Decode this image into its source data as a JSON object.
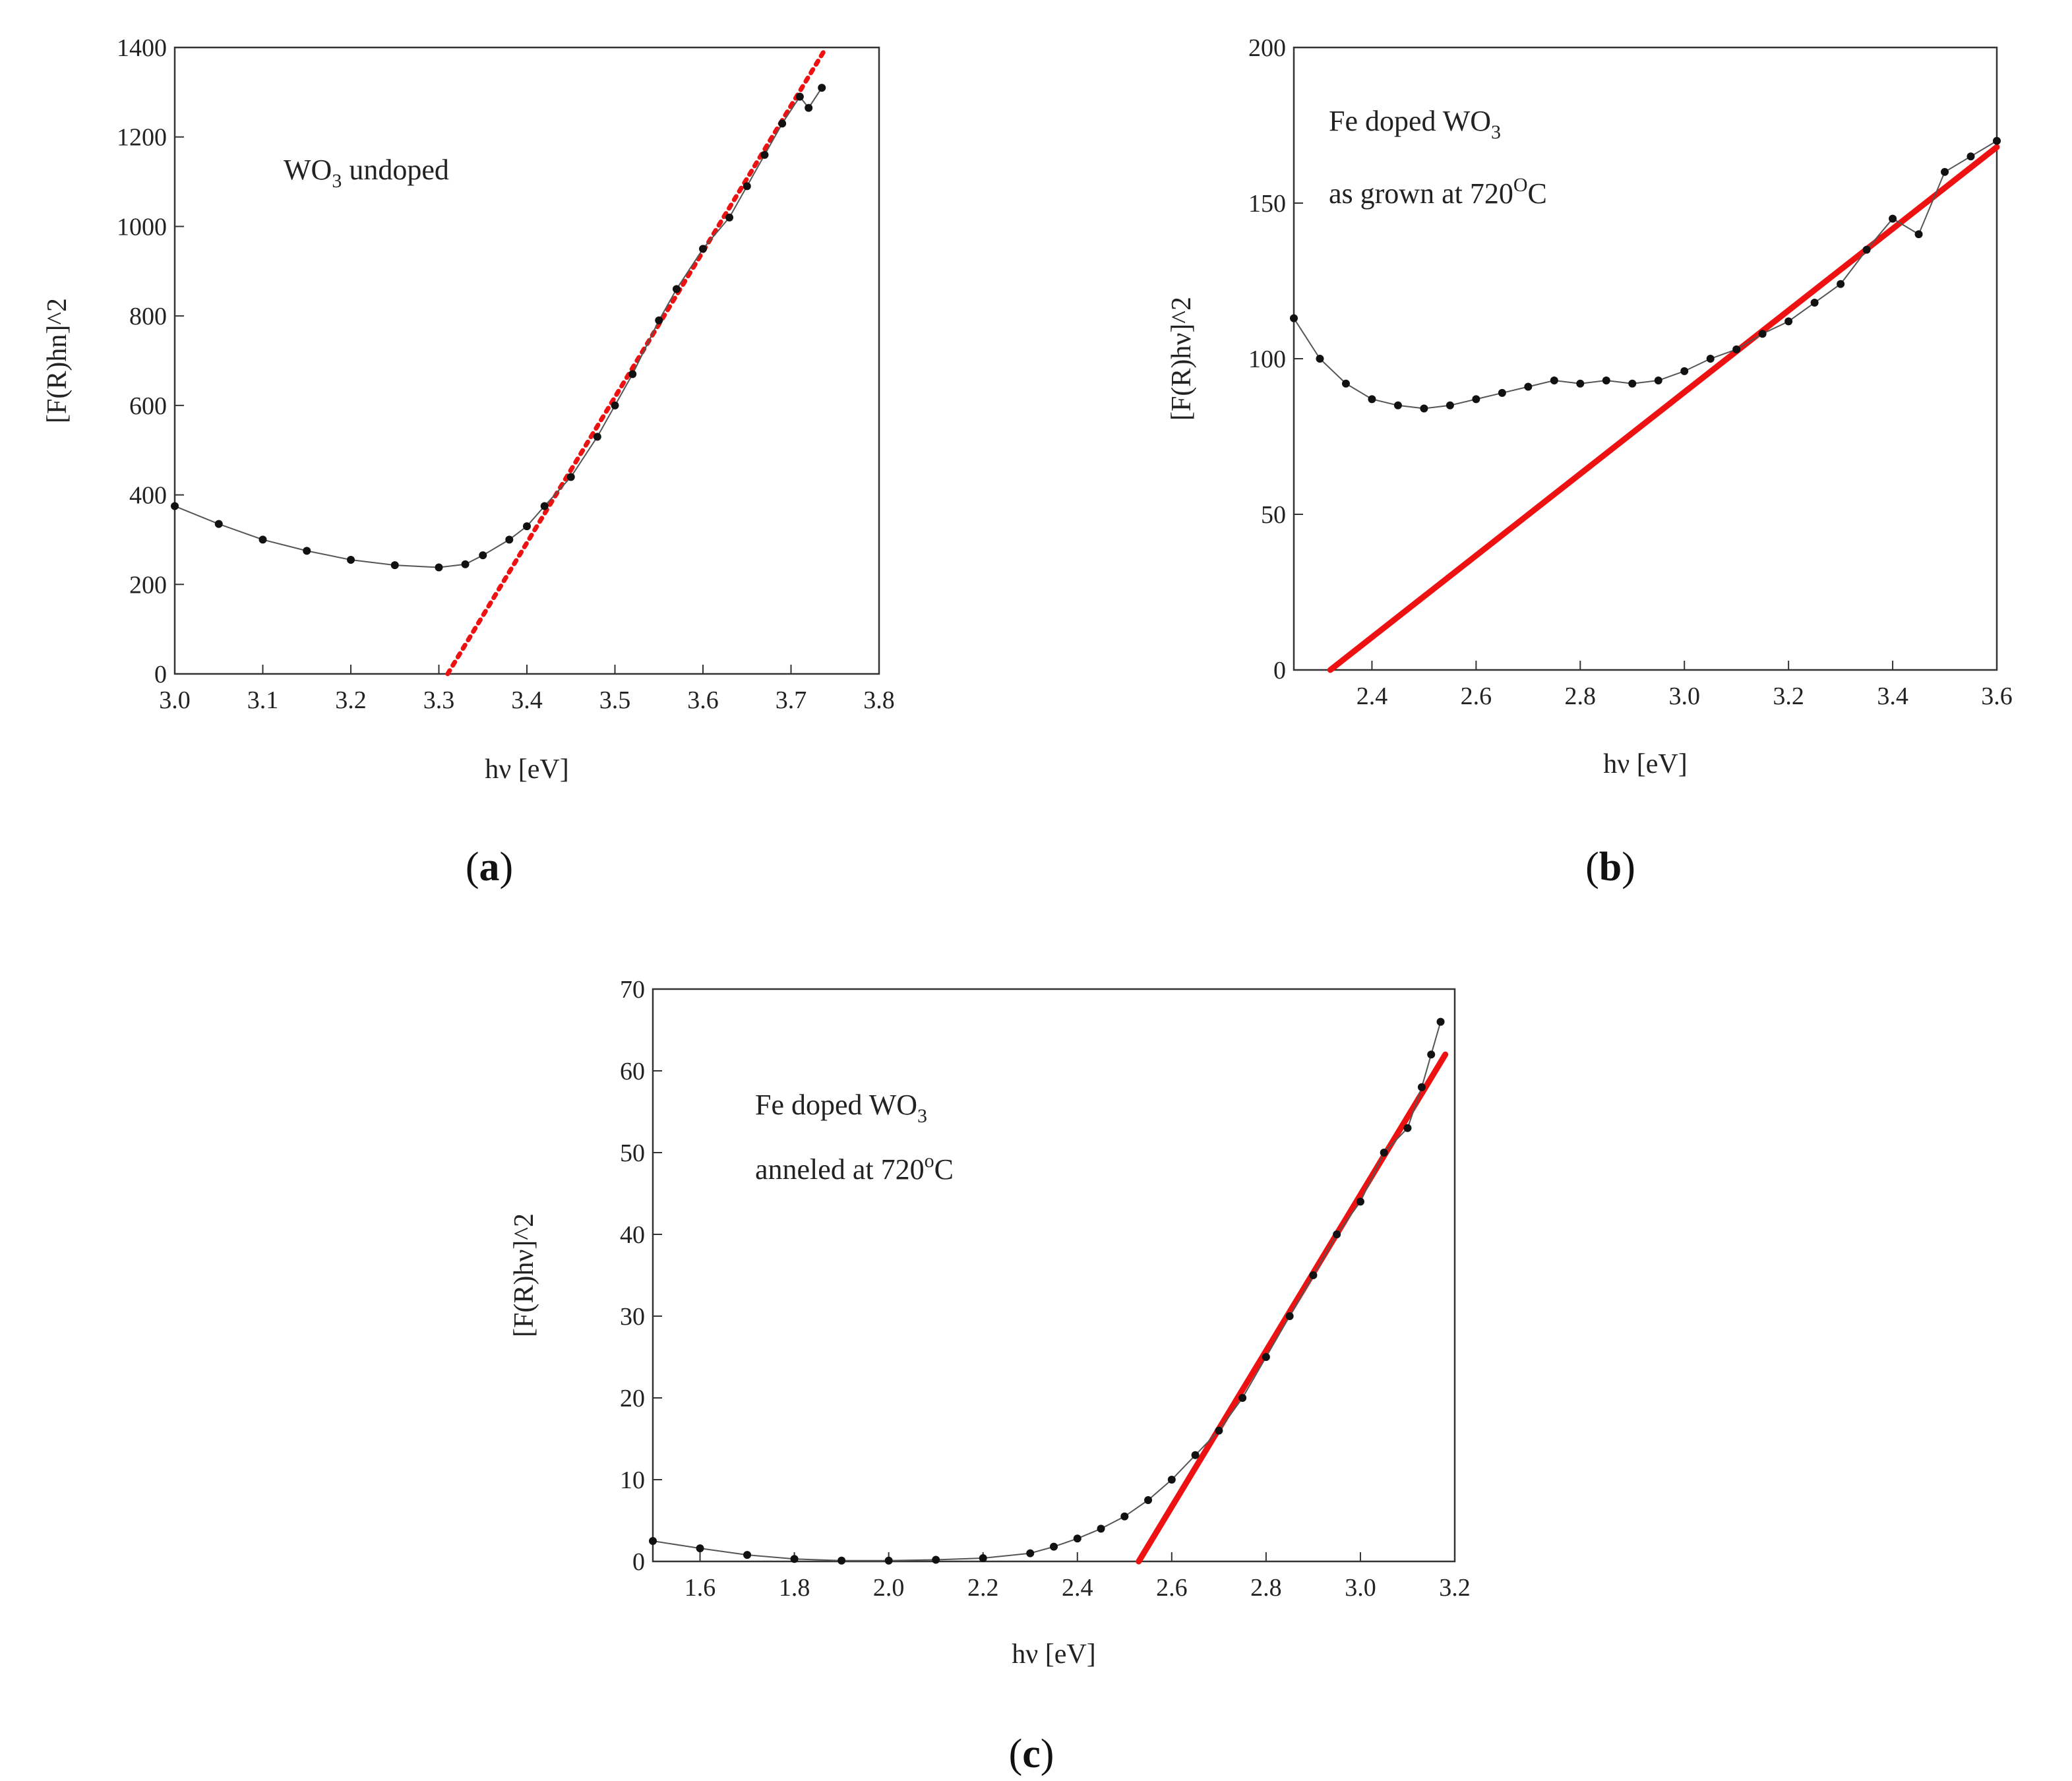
{
  "chart_data": [
    {
      "type": "scatter",
      "panel_label": "a",
      "xlabel": "hν [eV]",
      "ylabel": "[F(R)hn]^2",
      "xlim": [
        3.0,
        3.8
      ],
      "ylim": [
        0,
        1400
      ],
      "xticks": [
        "3.0",
        "3.1",
        "3.2",
        "3.3",
        "3.4",
        "3.5",
        "3.6",
        "3.7",
        "3.8"
      ],
      "yticks": [
        "0",
        "200",
        "400",
        "600",
        "800",
        "1000",
        "1200",
        "1400"
      ],
      "annotation": {
        "main": "WO",
        "sub": "3",
        "rest": " undoped"
      },
      "fit_line_style": "dotted",
      "series": [
        {
          "name": "data",
          "x": [
            3.0,
            3.05,
            3.1,
            3.15,
            3.2,
            3.25,
            3.3,
            3.33,
            3.35,
            3.38,
            3.4,
            3.42,
            3.45,
            3.48,
            3.5,
            3.52,
            3.55,
            3.57,
            3.6,
            3.63,
            3.65,
            3.67,
            3.69,
            3.71,
            3.72,
            3.735
          ],
          "y": [
            375,
            335,
            300,
            275,
            255,
            243,
            238,
            245,
            265,
            300,
            330,
            375,
            440,
            530,
            600,
            670,
            790,
            860,
            950,
            1020,
            1090,
            1160,
            1230,
            1290,
            1265,
            1310
          ]
        },
        {
          "name": "linear fit",
          "x": [
            3.31,
            3.74
          ],
          "y": [
            0,
            1400
          ]
        }
      ]
    },
    {
      "type": "scatter",
      "panel_label": "b",
      "xlabel": "hν [eV]",
      "ylabel": "[F(R)hν]^2",
      "xlim": [
        2.25,
        3.6
      ],
      "ylim": [
        0,
        200
      ],
      "xticks": [
        "2.4",
        "2.6",
        "2.8",
        "3.0",
        "3.2",
        "3.4",
        "3.6"
      ],
      "yticks": [
        "0",
        "50",
        "100",
        "150",
        "200"
      ],
      "annotation": {
        "line1": "Fe doped WO",
        "line1_sub": "3",
        "line2": "as grown at 720",
        "line2_sup": "O",
        "line2_rest": "C"
      },
      "fit_line_style": "solid",
      "series": [
        {
          "name": "data",
          "x": [
            2.25,
            2.3,
            2.35,
            2.4,
            2.45,
            2.5,
            2.55,
            2.6,
            2.65,
            2.7,
            2.75,
            2.8,
            2.85,
            2.9,
            2.95,
            3.0,
            3.05,
            3.1,
            3.15,
            3.2,
            3.25,
            3.3,
            3.35,
            3.4,
            3.45,
            3.5,
            3.55,
            3.6
          ],
          "y": [
            113,
            100,
            92,
            87,
            85,
            84,
            85,
            87,
            89,
            91,
            93,
            92,
            93,
            92,
            93,
            96,
            100,
            103,
            108,
            112,
            118,
            124,
            135,
            145,
            140,
            160,
            165,
            170
          ]
        },
        {
          "name": "linear fit",
          "x": [
            2.32,
            3.6
          ],
          "y": [
            0,
            168
          ]
        }
      ]
    },
    {
      "type": "scatter",
      "panel_label": "c",
      "xlabel": "hν [eV]",
      "ylabel": "[F(R)hν]^2",
      "xlim": [
        1.5,
        3.2
      ],
      "ylim": [
        0,
        70
      ],
      "xticks": [
        "1.6",
        "1.8",
        "2.0",
        "2.2",
        "2.4",
        "2.6",
        "2.8",
        "3.0",
        "3.2"
      ],
      "yticks": [
        "0",
        "10",
        "20",
        "30",
        "40",
        "50",
        "60",
        "70"
      ],
      "annotation": {
        "line1": "Fe doped WO",
        "line1_sub": "3",
        "line2": "anneled at 720",
        "line2_sup": "o",
        "line2_rest": "C"
      },
      "fit_line_style": "solid",
      "series": [
        {
          "name": "data",
          "x": [
            1.5,
            1.6,
            1.7,
            1.8,
            1.9,
            2.0,
            2.1,
            2.2,
            2.3,
            2.35,
            2.4,
            2.45,
            2.5,
            2.55,
            2.6,
            2.65,
            2.7,
            2.75,
            2.8,
            2.85,
            2.9,
            2.95,
            3.0,
            3.05,
            3.1,
            3.13,
            3.15,
            3.17
          ],
          "y": [
            2.5,
            1.6,
            0.8,
            0.3,
            0.1,
            0.1,
            0.2,
            0.4,
            1.0,
            1.8,
            2.8,
            4.0,
            5.5,
            7.5,
            10.0,
            13.0,
            16.0,
            20.0,
            25.0,
            30.0,
            35.0,
            40.0,
            44.0,
            50.0,
            53.0,
            58.0,
            62.0,
            66.0
          ]
        },
        {
          "name": "linear fit",
          "x": [
            2.53,
            3.18
          ],
          "y": [
            0,
            62
          ]
        }
      ]
    }
  ]
}
